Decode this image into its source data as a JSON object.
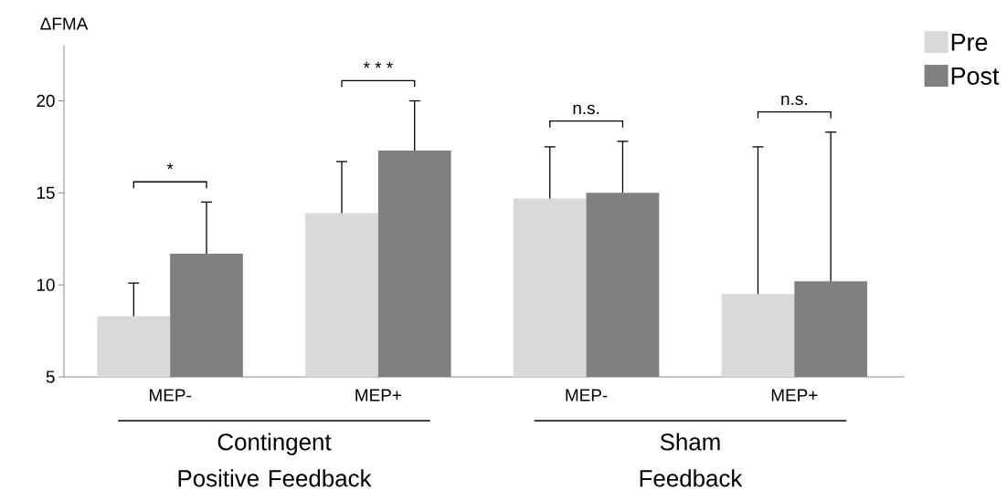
{
  "chart_data": {
    "type": "bar",
    "ylabel": "ΔFMA",
    "categories": [
      "MEP-",
      "MEP+",
      "MEP-",
      "MEP+"
    ],
    "series": [
      {
        "name": "Pre",
        "color": "#d9d9d9",
        "values": [
          8.3,
          13.9,
          14.7,
          9.5
        ],
        "errors": [
          [
            8.3,
            10.1
          ],
          [
            13.9,
            16.7
          ],
          [
            14.7,
            17.5
          ],
          [
            9.5,
            17.5
          ]
        ]
      },
      {
        "name": "Post",
        "color": "#808080",
        "values": [
          11.7,
          17.3,
          15.0,
          10.2
        ],
        "errors": [
          [
            11.7,
            14.5
          ],
          [
            17.3,
            20.0
          ],
          [
            15.0,
            17.8
          ],
          [
            10.2,
            18.3
          ]
        ]
      }
    ],
    "ylim": [
      5,
      23
    ],
    "yticks": [
      5,
      10,
      15,
      20
    ],
    "legend": "top right",
    "annotations": [
      "*",
      "* * *",
      "n.s.",
      "n.s.",
      "Contingent Positive Feedback",
      "Sham Feedback"
    ]
  }
}
